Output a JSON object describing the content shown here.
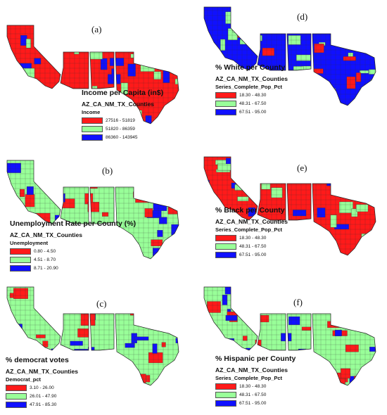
{
  "colors": {
    "red": "#ff1a1a",
    "green": "#99ff99",
    "blue": "#1010ff"
  },
  "panels": [
    {
      "label": "(a)",
      "title": "Income per Capita (in$)",
      "layer": "AZ_CA_NM_TX_Counties",
      "field": "Income",
      "classes": [
        {
          "range": "27516 - 51819",
          "color": "red"
        },
        {
          "range": "51820 - 86359",
          "color": "green"
        },
        {
          "range": "86360 - 143945",
          "color": "blue"
        }
      ],
      "base": "red",
      "accents": [
        "green",
        "blue"
      ]
    },
    {
      "label": "(b)",
      "title": "Unemployment Rate per County (%)",
      "layer": "AZ_CA_NM_TX_Counties",
      "field": "Unemployment",
      "classes": [
        {
          "range": "0.80 - 4.50",
          "color": "red"
        },
        {
          "range": "4.51 - 8.70",
          "color": "green"
        },
        {
          "range": "8.71 - 20.90",
          "color": "blue"
        }
      ],
      "base": "green",
      "accents": [
        "red",
        "blue"
      ]
    },
    {
      "label": "(c)",
      "title": "% democrat votes",
      "layer": "AZ_CA_NM_TX_Counties",
      "field": "Democrat_pct",
      "classes": [
        {
          "range": "3.10 - 26.00",
          "color": "red"
        },
        {
          "range": "26.01 - 47.90",
          "color": "green"
        },
        {
          "range": "47.91 - 85.30",
          "color": "blue"
        }
      ],
      "base": "green",
      "accents": [
        "red",
        "blue"
      ]
    },
    {
      "label": "(d)",
      "title": "% White per County",
      "layer": "AZ_CA_NM_TX_Counties",
      "field": "Series_Complete_Pop_Pct",
      "classes": [
        {
          "range": "18.30 - 48.30",
          "color": "red"
        },
        {
          "range": "48.31 - 67.50",
          "color": "green"
        },
        {
          "range": "67.51 - 95.00",
          "color": "blue"
        }
      ],
      "base": "blue",
      "accents": [
        "green",
        "red"
      ]
    },
    {
      "label": "(e)",
      "title": "% Black per County",
      "layer": "AZ_CA_NM_TX_Counties",
      "field": "Series_Complete_Pop_Pct",
      "classes": [
        {
          "range": "18.30 - 48.30",
          "color": "red"
        },
        {
          "range": "48.31 - 67.50",
          "color": "green"
        },
        {
          "range": "67.51 - 95.00",
          "color": "blue"
        }
      ],
      "base": "red",
      "accents": [
        "green",
        "blue"
      ]
    },
    {
      "label": "(f)",
      "title": "% Hispanic per County",
      "layer": "AZ_CA_NM_TX_Counties",
      "field": "Series_Complete_Pop_Pct",
      "classes": [
        {
          "range": "18.30 - 48.30",
          "color": "red"
        },
        {
          "range": "48.31 - 67.50",
          "color": "green"
        },
        {
          "range": "67.51 - 95.00",
          "color": "blue"
        }
      ],
      "base": "green",
      "accents": [
        "red",
        "blue"
      ]
    }
  ]
}
